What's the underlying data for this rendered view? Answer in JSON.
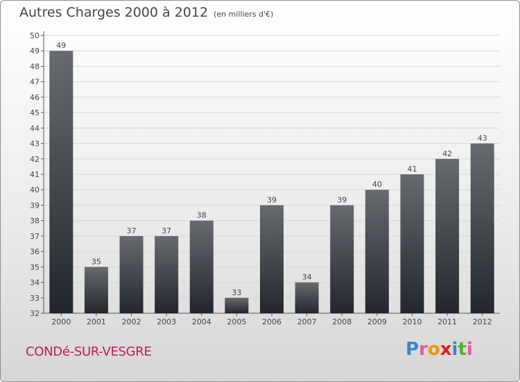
{
  "title": "Autres Charges 2000 à 2012",
  "subtitle": "(en milliers d'€)",
  "location": "CONDé-SUR-VESGRE",
  "logo": {
    "text": "Proxiti",
    "letter_colors": [
      "#3a86c8",
      "#e05a9c",
      "#f29400",
      "#e02020",
      "#3a86c8",
      "#58b030",
      "#e05a9c"
    ]
  },
  "colors": {
    "bar_top": "#676b70",
    "bar_bottom": "#22272d",
    "axis_text": "#444444",
    "grid": "#d8d8d8"
  },
  "chart_data": {
    "type": "bar",
    "categories": [
      "2000",
      "2001",
      "2002",
      "2003",
      "2004",
      "2005",
      "2006",
      "2007",
      "2008",
      "2009",
      "2010",
      "2011",
      "2012"
    ],
    "values": [
      49,
      35,
      37,
      37,
      38,
      33,
      39,
      34,
      39,
      40,
      41,
      42,
      43
    ],
    "ylim": [
      32,
      50
    ],
    "yticks": [
      32,
      33,
      34,
      35,
      36,
      37,
      38,
      39,
      40,
      41,
      42,
      43,
      44,
      45,
      46,
      47,
      48,
      49,
      50
    ],
    "grid": true,
    "xlabel": "",
    "ylabel": ""
  }
}
